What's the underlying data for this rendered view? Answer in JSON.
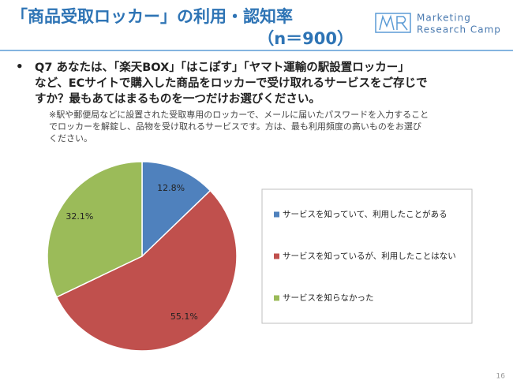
{
  "chart_data": {
    "type": "pie",
    "title": "「商品受取ロッカー」の利用・認知率",
    "subtitle": "（n＝900）",
    "categories": [
      "サービスを知っていて、利用したことがある",
      "サービスを知っているが、利用したことはない",
      "サービスを知らなかった"
    ],
    "values": [
      12.8,
      55.1,
      32.1
    ],
    "value_labels": [
      "12.8%",
      "55.1%",
      "32.1%"
    ],
    "colors": [
      "#4f81bd",
      "#c0504d",
      "#9bbb59"
    ],
    "legend": "right"
  },
  "logo": {
    "line1": "Marketing",
    "line2": "Research Camp"
  },
  "question": [
    "Q7 あなたは、「楽天BOX」「はこぽす」「ヤマト運輸の駅設置ロッカー」",
    "など、ECサイトで購入した商品をロッカーで受け取れるサービスをご存じで",
    "すか？最もあてはまるものを一つだけお選びください。"
  ],
  "note": [
    "※駅や郵便局などに設置された受取専用のロッカーで、メールに届いたパスワードを入力すること",
    "でロッカーを解錠し、品物を受け取れるサービスです。方は、最も利用頻度の高いものをお選び",
    "ください。"
  ],
  "page_number": "16"
}
